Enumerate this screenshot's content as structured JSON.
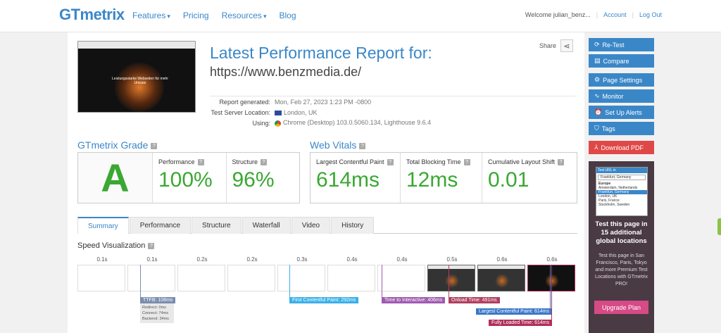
{
  "header": {
    "logo": "GTmetrix",
    "nav": [
      {
        "label": "Features",
        "dropdown": true
      },
      {
        "label": "Pricing",
        "dropdown": false
      },
      {
        "label": "Resources",
        "dropdown": true
      },
      {
        "label": "Blog",
        "dropdown": false
      }
    ],
    "welcome": "Welcome julian_benz...",
    "account": "Account",
    "logout": "Log Out",
    "sep": "|"
  },
  "report": {
    "title": "Latest Performance Report for:",
    "url": "https://www.benzmedia.de/",
    "share": "Share",
    "generated_label": "Report generated:",
    "generated_value": "Mon, Feb 27, 2023 1:23 PM -0800",
    "location_label": "Test Server Location:",
    "location_value": "London, UK",
    "using_label": "Using:",
    "using_value": "Chrome (Desktop) 103.0.5060.134, Lighthouse 9.6.4",
    "thumb_text": "Leistungsstarke Webseiten für mehr Umsatz"
  },
  "grade": {
    "title": "GTmetrix Grade",
    "letter": "A",
    "performance_label": "Performance",
    "performance_value": "100%",
    "structure_label": "Structure",
    "structure_value": "96%"
  },
  "vitals": {
    "title": "Web Vitals",
    "lcp_label": "Largest Contentful Paint",
    "lcp_value": "614ms",
    "tbt_label": "Total Blocking Time",
    "tbt_value": "12ms",
    "cls_label": "Cumulative Layout Shift",
    "cls_value": "0.01"
  },
  "tabs": [
    "Summary",
    "Performance",
    "Structure",
    "Waterfall",
    "Video",
    "History"
  ],
  "speed": {
    "title": "Speed Visualization",
    "ticks": [
      "0.1s",
      "0.1s",
      "0.2s",
      "0.2s",
      "0.3s",
      "0.4s",
      "0.4s",
      "0.5s",
      "0.6s",
      "0.6s"
    ],
    "ttfb": "TTFB: 108ms",
    "ttfb_redirect": "Redirect: 0ms",
    "ttfb_connect": "Connect: 74ms",
    "ttfb_backend": "Backend: 34ms",
    "fcp": "First Contentful Paint: 292ms",
    "tti": "Time to Interactive: 406ms",
    "onload": "Onload Time: 491ms",
    "lcp": "Largest Contentful Paint: 614ms",
    "fully": "Fully Loaded Time: 614ms"
  },
  "sidebar": {
    "retest": "Re-Test",
    "compare": "Compare",
    "page_settings": "Page Settings",
    "monitor": "Monitor",
    "alerts": "Set Up Alerts",
    "tags": "Tags",
    "pdf": "Download PDF"
  },
  "promo": {
    "test_url_in": "Test URL in",
    "location_select": "Frankfurt, Germany",
    "group": "Europe",
    "options": [
      "Amsterdam, Netherlands",
      "Frankfurt, Germany",
      "London, UK",
      "Paris, France",
      "Stockholm, Sweden"
    ],
    "headline": "Test this page in 15 additional global locations",
    "body": "Test this page in San Francisco, Paris, Tokyo and more Premium Test Locations with GTmetrix PRO!",
    "upgrade": "Upgrade Plan"
  },
  "colors": {
    "accent": "#3a87c8",
    "grade_green": "#3aa832",
    "pdf_red": "#e04848",
    "upgrade_pink": "#d64a86",
    "tti_purple": "#a05ab0",
    "onload_mauve": "#b04060",
    "fully_pink": "#b0305a"
  }
}
